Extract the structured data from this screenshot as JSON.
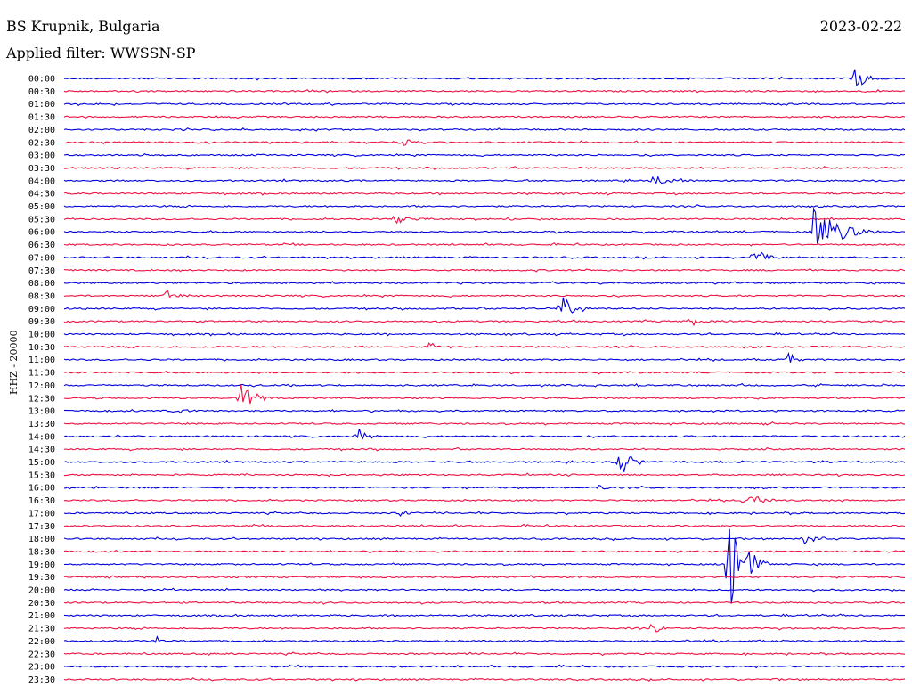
{
  "header": {
    "station": "BS Krupnik, Bulgaria",
    "filter": "Applied filter: WWSSN-SP",
    "date": "2023-02-22"
  },
  "axis": {
    "channel_label": "HHZ - 20000"
  },
  "colors": {
    "even_trace": "#0000dd",
    "odd_trace": "#ee1144",
    "background": "#ffffff"
  },
  "trace_labels": [
    "00:00",
    "00:30",
    "01:00",
    "01:30",
    "02:00",
    "02:30",
    "03:00",
    "03:30",
    "04:00",
    "04:30",
    "05:00",
    "05:30",
    "06:00",
    "06:30",
    "07:00",
    "07:30",
    "08:00",
    "08:30",
    "09:00",
    "09:30",
    "10:00",
    "10:30",
    "11:00",
    "11:30",
    "12:00",
    "12:30",
    "13:00",
    "13:30",
    "14:00",
    "14:30",
    "15:00",
    "15:30",
    "16:00",
    "16:30",
    "17:00",
    "17:30",
    "18:00",
    "18:30",
    "19:00",
    "19:30",
    "20:00",
    "20:30",
    "21:00",
    "21:30",
    "22:00",
    "22:30",
    "23:00",
    "23:30"
  ],
  "events": [
    {
      "trace": 0,
      "t": 0.94,
      "amp": 12,
      "dur": 0.04
    },
    {
      "trace": 5,
      "t": 0.4,
      "amp": 5,
      "dur": 0.05
    },
    {
      "trace": 8,
      "t": 0.7,
      "amp": 6,
      "dur": 0.05
    },
    {
      "trace": 11,
      "t": 0.39,
      "amp": 5,
      "dur": 0.07
    },
    {
      "trace": 12,
      "t": 0.89,
      "amp": 28,
      "dur": 0.08
    },
    {
      "trace": 14,
      "t": 0.82,
      "amp": 12,
      "dur": 0.03
    },
    {
      "trace": 17,
      "t": 0.12,
      "amp": 6,
      "dur": 0.05
    },
    {
      "trace": 18,
      "t": 0.59,
      "amp": 18,
      "dur": 0.04
    },
    {
      "trace": 19,
      "t": 0.74,
      "amp": 6,
      "dur": 0.05
    },
    {
      "trace": 21,
      "t": 0.43,
      "amp": 8,
      "dur": 0.03
    },
    {
      "trace": 22,
      "t": 0.86,
      "amp": 12,
      "dur": 0.02
    },
    {
      "trace": 25,
      "t": 0.21,
      "amp": 16,
      "dur": 0.05
    },
    {
      "trace": 26,
      "t": 0.13,
      "amp": 8,
      "dur": 0.03
    },
    {
      "trace": 28,
      "t": 0.35,
      "amp": 10,
      "dur": 0.03
    },
    {
      "trace": 30,
      "t": 0.66,
      "amp": 20,
      "dur": 0.03
    },
    {
      "trace": 32,
      "t": 0.64,
      "amp": 12,
      "dur": 0.01
    },
    {
      "trace": 33,
      "t": 0.81,
      "amp": 8,
      "dur": 0.05
    },
    {
      "trace": 34,
      "t": 0.4,
      "amp": 5,
      "dur": 0.04
    },
    {
      "trace": 36,
      "t": 0.88,
      "amp": 8,
      "dur": 0.04
    },
    {
      "trace": 38,
      "t": 0.79,
      "amp": 60,
      "dur": 0.05
    },
    {
      "trace": 43,
      "t": 0.7,
      "amp": 12,
      "dur": 0.02
    },
    {
      "trace": 44,
      "t": 0.11,
      "amp": 8,
      "dur": 0.01
    }
  ]
}
